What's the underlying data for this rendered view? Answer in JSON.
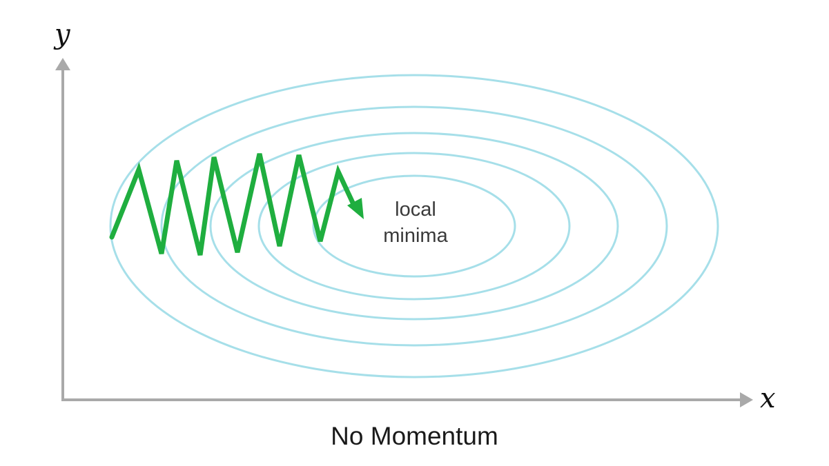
{
  "axes": {
    "y_label": "y",
    "x_label": "x"
  },
  "annotation": {
    "line1": "local",
    "line2": "minima"
  },
  "caption": "No Momentum",
  "colors": {
    "axis": "#a9a9a9",
    "contour": "#a6dfe9",
    "path": "#1fae3f"
  }
}
